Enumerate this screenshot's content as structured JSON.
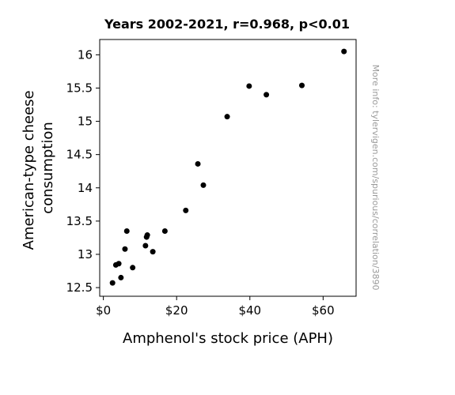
{
  "chart_data": {
    "type": "scatter",
    "title": "Years 2002-2021, r=0.968, p<0.01",
    "xlabel": "Amphenol's stock price (APH)",
    "ylabel_lines": [
      "American-type cheese",
      "consumption"
    ],
    "xlim": [
      -1,
      69
    ],
    "ylim": [
      12.37,
      16.23
    ],
    "xticks": [
      {
        "value": 0,
        "label": "$0"
      },
      {
        "value": 20,
        "label": "$20"
      },
      {
        "value": 40,
        "label": "$40"
      },
      {
        "value": 60,
        "label": "$60"
      }
    ],
    "yticks": [
      {
        "value": 12.5,
        "label": "12.5"
      },
      {
        "value": 13,
        "label": "13"
      },
      {
        "value": 13.5,
        "label": "13.5"
      },
      {
        "value": 14,
        "label": "14"
      },
      {
        "value": 14.5,
        "label": "14.5"
      },
      {
        "value": 15,
        "label": "15"
      },
      {
        "value": 15.5,
        "label": "15.5"
      },
      {
        "value": 16,
        "label": "16"
      }
    ],
    "grid": false,
    "point_color": "#000000",
    "points": [
      {
        "x": 2.5,
        "y": 12.57
      },
      {
        "x": 3.4,
        "y": 12.84
      },
      {
        "x": 4.2,
        "y": 12.86
      },
      {
        "x": 4.8,
        "y": 12.65
      },
      {
        "x": 5.9,
        "y": 13.08
      },
      {
        "x": 6.4,
        "y": 13.35
      },
      {
        "x": 8.0,
        "y": 12.8
      },
      {
        "x": 11.5,
        "y": 13.13
      },
      {
        "x": 11.8,
        "y": 13.26
      },
      {
        "x": 12.0,
        "y": 13.29
      },
      {
        "x": 13.5,
        "y": 13.04
      },
      {
        "x": 16.8,
        "y": 13.35
      },
      {
        "x": 22.5,
        "y": 13.66
      },
      {
        "x": 25.8,
        "y": 14.36
      },
      {
        "x": 27.3,
        "y": 14.04
      },
      {
        "x": 33.8,
        "y": 15.07
      },
      {
        "x": 39.8,
        "y": 15.53
      },
      {
        "x": 44.5,
        "y": 15.4
      },
      {
        "x": 54.2,
        "y": 15.54
      },
      {
        "x": 65.7,
        "y": 16.05
      }
    ],
    "watermark": "More info: tylervigen.com/spurious/correlation/3890"
  }
}
